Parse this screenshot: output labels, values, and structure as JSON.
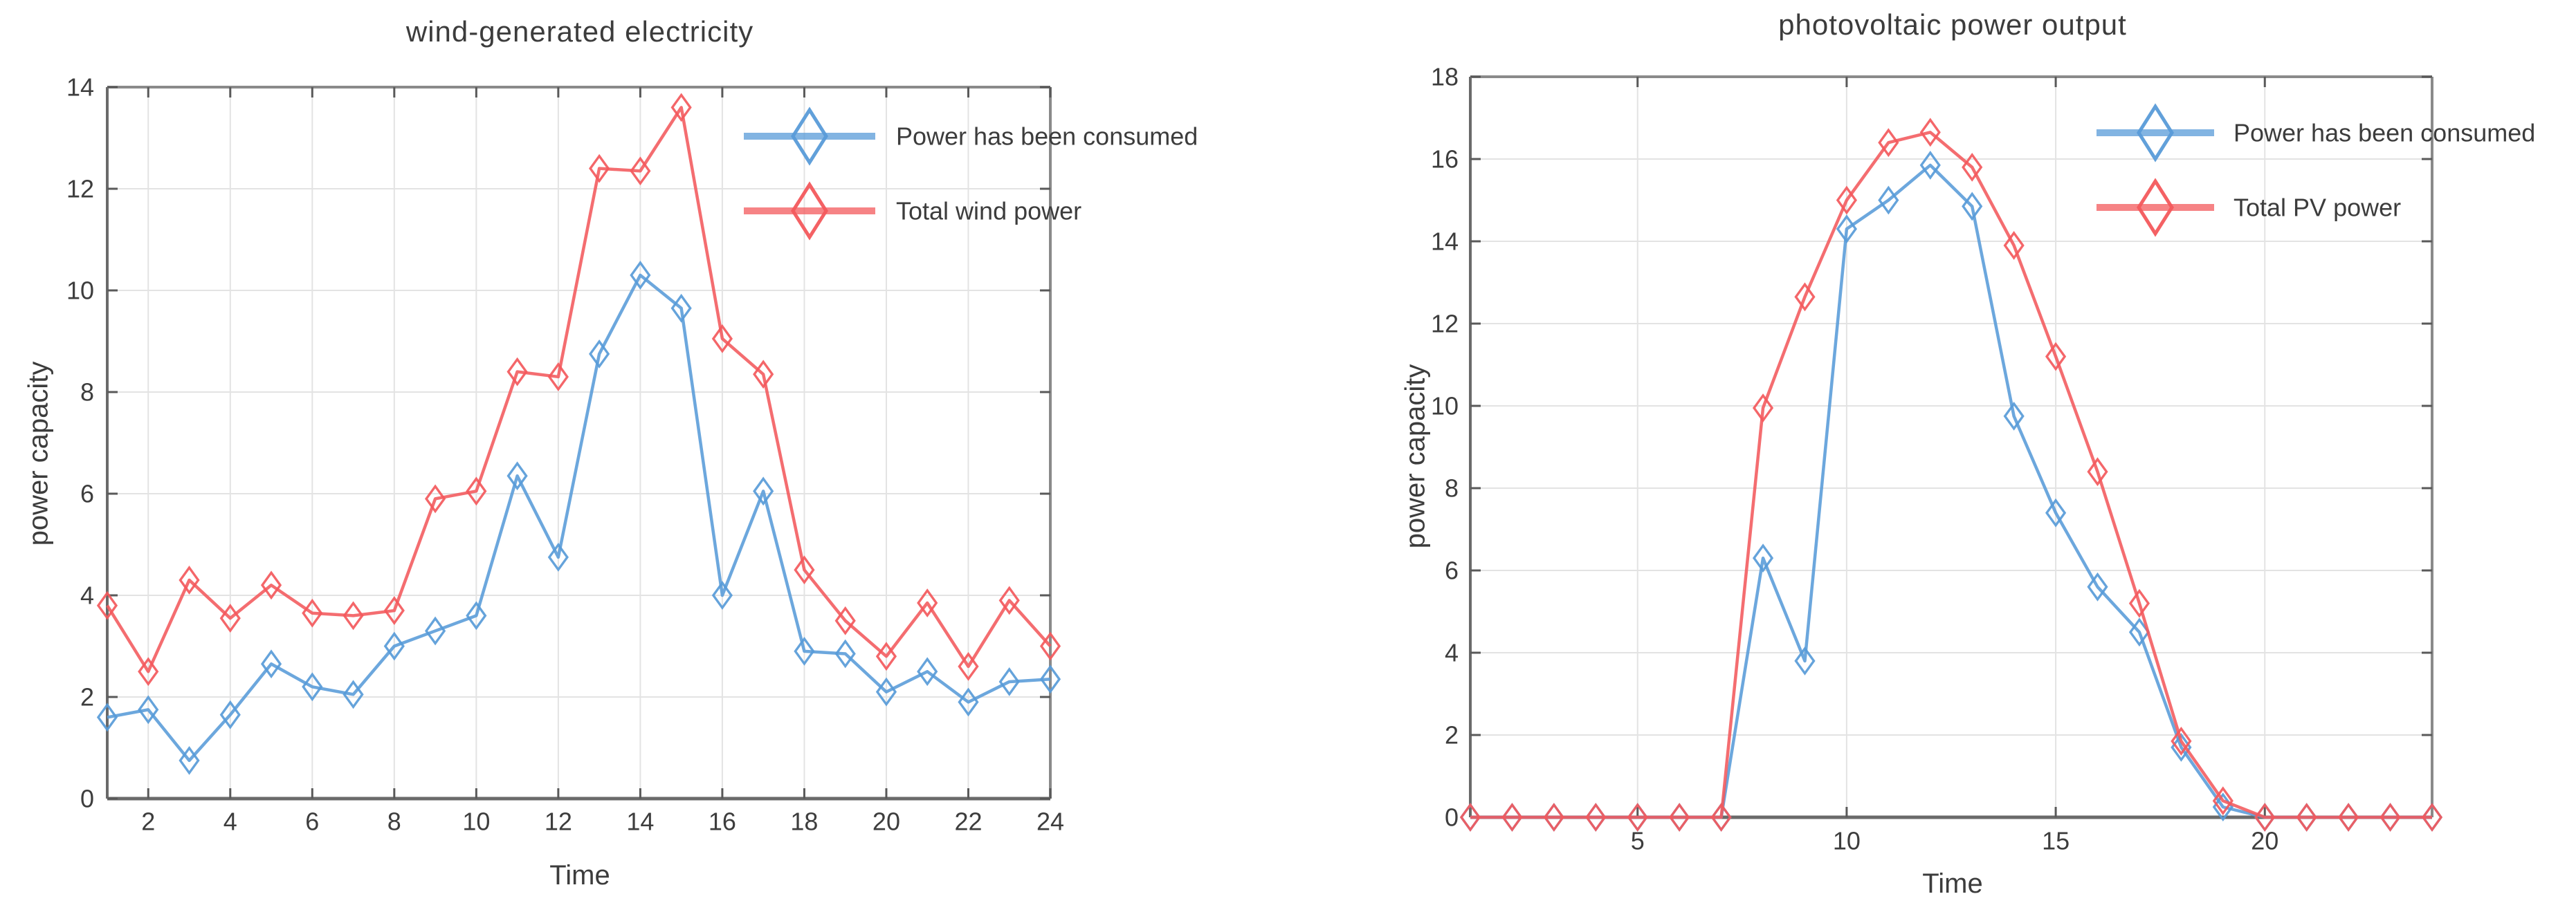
{
  "page": {
    "background_color": "#ffffff",
    "text_color": "#3c3c3c",
    "grid_color": "#e3e3e3",
    "axis_color": "#6e6e6e"
  },
  "chart_data": [
    {
      "id": "wind",
      "type": "line",
      "title": "wind-generated electricity",
      "xlabel": "Time",
      "ylabel": "power capacity",
      "xlim": [
        1,
        24
      ],
      "ylim": [
        0,
        14
      ],
      "xticks": [
        2,
        4,
        6,
        8,
        10,
        12,
        14,
        16,
        18,
        20,
        22,
        24
      ],
      "yticks": [
        0,
        2,
        4,
        6,
        8,
        10,
        12,
        14
      ],
      "grid": true,
      "legend_position": "northeast",
      "marker": "diamond",
      "x": [
        1,
        2,
        3,
        4,
        5,
        6,
        7,
        8,
        9,
        10,
        11,
        12,
        13,
        14,
        15,
        16,
        17,
        18,
        19,
        20,
        21,
        22,
        23,
        24
      ],
      "series": [
        {
          "name": "Power has been consumed",
          "color": "#589BD8",
          "values": [
            1.6,
            1.75,
            0.75,
            1.65,
            2.65,
            2.2,
            2.05,
            3.0,
            3.3,
            3.6,
            6.35,
            4.75,
            8.75,
            10.3,
            9.65,
            4.0,
            6.05,
            2.9,
            2.85,
            2.1,
            2.5,
            1.9,
            2.3,
            2.35
          ]
        },
        {
          "name": "Total wind power",
          "color": "#F3595C",
          "values": [
            3.8,
            2.5,
            4.3,
            3.55,
            4.2,
            3.65,
            3.6,
            3.7,
            5.9,
            6.05,
            8.4,
            8.3,
            12.4,
            12.35,
            13.6,
            9.05,
            8.35,
            4.5,
            3.5,
            2.8,
            3.85,
            2.6,
            3.9,
            3.0
          ]
        }
      ]
    },
    {
      "id": "pv",
      "type": "line",
      "title": "photovoltaic power output",
      "xlabel": "Time",
      "ylabel": "power capacity",
      "xlim": [
        1,
        24
      ],
      "ylim": [
        0,
        18
      ],
      "xticks": [
        5,
        10,
        15,
        20
      ],
      "yticks": [
        0,
        2,
        4,
        6,
        8,
        10,
        12,
        14,
        16,
        18
      ],
      "grid": true,
      "legend_position": "northeast",
      "marker": "diamond",
      "x": [
        1,
        2,
        3,
        4,
        5,
        6,
        7,
        8,
        9,
        10,
        11,
        12,
        13,
        14,
        15,
        16,
        17,
        18,
        19,
        20,
        21,
        22,
        23,
        24
      ],
      "series": [
        {
          "name": "Power has been consumed",
          "color": "#589BD8",
          "values": [
            0,
            0,
            0,
            0,
            0,
            0,
            0,
            6.3,
            3.8,
            14.3,
            15.0,
            15.85,
            14.85,
            9.75,
            7.4,
            5.6,
            4.5,
            1.7,
            0.25,
            0,
            0,
            0,
            0,
            0
          ]
        },
        {
          "name": "Total PV power",
          "color": "#F3595C",
          "values": [
            0,
            0,
            0,
            0,
            0,
            0,
            0,
            9.95,
            12.65,
            15.0,
            16.4,
            16.65,
            15.8,
            13.9,
            11.2,
            8.4,
            5.2,
            1.85,
            0.4,
            0,
            0,
            0,
            0,
            0
          ]
        }
      ]
    }
  ]
}
